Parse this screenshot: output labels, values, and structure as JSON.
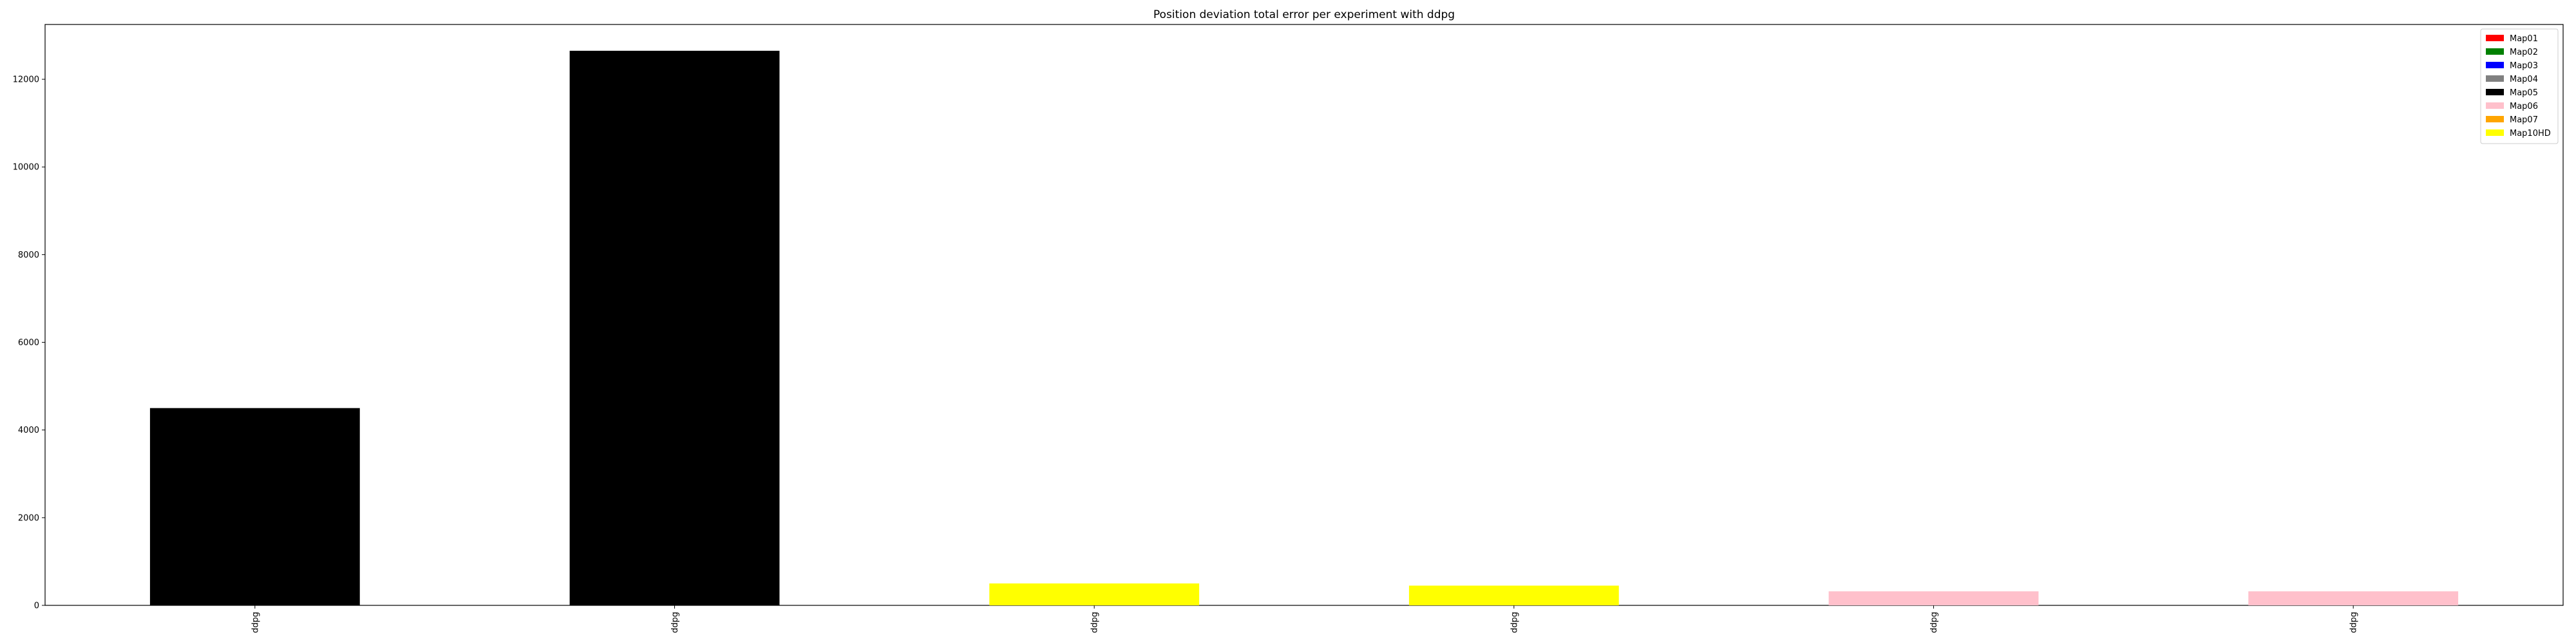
{
  "chart_data": {
    "type": "bar",
    "title": "Position deviation total error per experiment with ddpg",
    "xlabel": "",
    "ylabel": "",
    "categories": [
      "ddpg",
      "ddpg",
      "ddpg",
      "ddpg",
      "ddpg",
      "ddpg"
    ],
    "values": [
      4500,
      12650,
      500,
      450,
      320,
      320
    ],
    "bar_colors": [
      "#000000",
      "#000000",
      "#ffff00",
      "#ffff00",
      "#ffc0cb",
      "#ffc0cb"
    ],
    "ylim": [
      0,
      13250
    ],
    "yticks": [
      0,
      2000,
      4000,
      6000,
      8000,
      10000,
      12000
    ],
    "grid": false,
    "legend": {
      "placement": "top-right",
      "entries": [
        {
          "label": "Map01",
          "color": "#ff0000"
        },
        {
          "label": "Map02",
          "color": "#008000"
        },
        {
          "label": "Map03",
          "color": "#0000ff"
        },
        {
          "label": "Map04",
          "color": "#808080"
        },
        {
          "label": "Map05",
          "color": "#000000"
        },
        {
          "label": "Map06",
          "color": "#ffc0cb"
        },
        {
          "label": "Map07",
          "color": "#ffa500"
        },
        {
          "label": "Map10HD",
          "color": "#ffff00"
        }
      ]
    }
  }
}
